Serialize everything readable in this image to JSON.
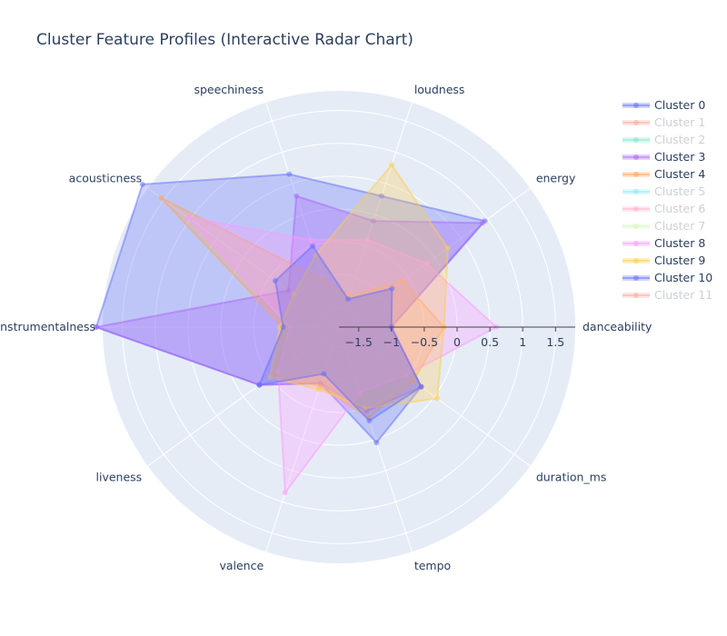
{
  "chart_data": {
    "type": "radar",
    "title": "Cluster Feature Profiles (Interactive Radar Chart)",
    "axes": [
      "danceability",
      "energy",
      "loudness",
      "speechiness",
      "acousticness",
      "instrumentalness",
      "liveness",
      "valence",
      "tempo",
      "duration_ms"
    ],
    "radial_range": [
      -1.8,
      1.8
    ],
    "radial_ticks": [
      -1.5,
      -1,
      -0.5,
      0,
      0.5,
      1,
      1.5
    ],
    "radial_tick_labels": [
      "−1.5",
      "−1",
      "−0.5",
      "0",
      "0.5",
      "1",
      "1.5"
    ],
    "grid": true,
    "legend_position": "top-right",
    "series": [
      {
        "name": "Cluster 0",
        "visible": true,
        "color": "#636efa",
        "values": [
          -1.0,
          0.95,
          0.3,
          0.65,
          1.9,
          1.9,
          -0.3,
          -0.9,
          0.05,
          -0.25
        ]
      },
      {
        "name": "Cluster 1",
        "visible": false,
        "color": "#EF553B",
        "values": [
          0,
          0,
          0,
          0,
          0,
          0,
          0,
          0,
          0,
          0
        ]
      },
      {
        "name": "Cluster 2",
        "visible": false,
        "color": "#00cc96",
        "values": [
          0,
          0,
          0,
          0,
          0,
          0,
          0,
          0,
          0,
          0
        ]
      },
      {
        "name": "Cluster 3",
        "visible": true,
        "color": "#ab63fa",
        "values": [
          -1.0,
          0.9,
          -0.1,
          0.3,
          -0.85,
          1.9,
          -0.3,
          -0.9,
          -0.45,
          -0.25
        ]
      },
      {
        "name": "Cluster 4",
        "visible": true,
        "color": "#FFA15A",
        "values": [
          -0.2,
          -0.6,
          -1.3,
          -1.05,
          1.55,
          -0.95,
          -0.55,
          -0.85,
          -0.35,
          -0.4
        ]
      },
      {
        "name": "Cluster 5",
        "visible": false,
        "color": "#19d3f3",
        "values": [
          0,
          0,
          0,
          0,
          0,
          0,
          0,
          0,
          0,
          0
        ]
      },
      {
        "name": "Cluster 6",
        "visible": false,
        "color": "#FF6692",
        "values": [
          0,
          0,
          0,
          0,
          0,
          0,
          0,
          0,
          0,
          0
        ]
      },
      {
        "name": "Cluster 7",
        "visible": false,
        "color": "#B6E880",
        "values": [
          0,
          0,
          0,
          0,
          0,
          0,
          0,
          0,
          0,
          0
        ]
      },
      {
        "name": "Cluster 8",
        "visible": true,
        "color": "#FF97FF",
        "values": [
          0.6,
          -0.15,
          -0.4,
          -0.4,
          1.05,
          -1.05,
          -0.65,
          0.85,
          -0.75,
          -0.55
        ]
      },
      {
        "name": "Cluster 9",
        "visible": true,
        "color": "#FECB52",
        "values": [
          -0.2,
          0.25,
          0.8,
          -0.65,
          -0.95,
          -0.9,
          -0.5,
          -0.8,
          -0.5,
          0.05
        ]
      },
      {
        "name": "Cluster 10",
        "visible": true,
        "color": "#636efa",
        "values": [
          -1.0,
          -0.8,
          -1.35,
          -0.5,
          -0.6,
          -0.95,
          -0.3,
          -1.05,
          -0.3,
          -0.25
        ]
      },
      {
        "name": "Cluster 11",
        "visible": false,
        "color": "#EF553B",
        "values": [
          0,
          0,
          0,
          0,
          0,
          0,
          0,
          0,
          0,
          0
        ]
      }
    ]
  }
}
